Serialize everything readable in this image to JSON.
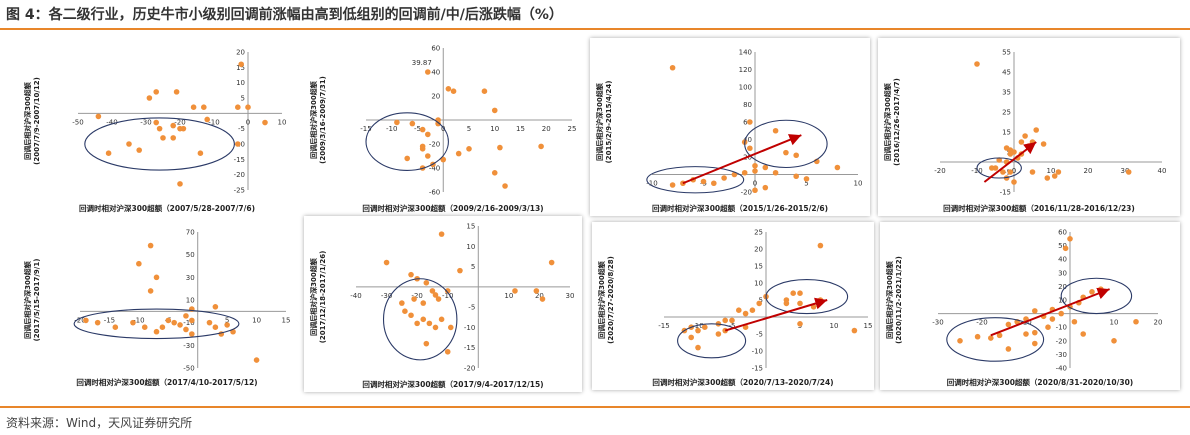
{
  "title": "图 4：各二级行业，历史牛市小级别回调前涨幅由高到低组别的回调前/中/后涨跌幅（%）",
  "source": "资料来源：Wind，天风证券研究所",
  "colors": {
    "accent": "#e8862a",
    "dot": "#f0903a",
    "ellipse": "#2b3a67",
    "arrow": "#c00000"
  },
  "chart_data": [
    {
      "type": "scatter",
      "xlabel": "回调时相对沪深300超额（2007/5/28-2007/7/6)",
      "ylabel": "回调后相对沪深300超额 (2007/7/9-2007/10/12)",
      "xlim": [
        -50,
        10
      ],
      "ylim": [
        -25,
        20
      ],
      "xticks": [
        -50,
        -40,
        -30,
        -20,
        -10,
        0,
        10
      ],
      "yticks": [
        -25,
        -20,
        -15,
        -10,
        -5,
        5,
        10,
        15,
        20
      ],
      "points": [
        [
          -2,
          16
        ],
        [
          0,
          2
        ],
        [
          -3,
          2
        ],
        [
          -13,
          2
        ],
        [
          -16,
          2
        ],
        [
          -44,
          -1
        ],
        [
          -29,
          5
        ],
        [
          -27,
          7
        ],
        [
          -21,
          7
        ],
        [
          -12,
          -2
        ],
        [
          -27,
          -3
        ],
        [
          -22,
          -4
        ],
        [
          -19,
          -5
        ],
        [
          -26,
          -5
        ],
        [
          -25,
          -8
        ],
        [
          -22,
          -8
        ],
        [
          -20,
          -5
        ],
        [
          -35,
          -10
        ],
        [
          -32,
          -12
        ],
        [
          -41,
          -13
        ],
        [
          -14,
          -13
        ],
        [
          -3,
          -10
        ],
        [
          -20,
          -23
        ],
        [
          5,
          -3
        ]
      ]
    },
    {
      "type": "scatter",
      "xlabel": "回调时相对沪深300超额（2009/2/16-2009/3/13)",
      "ylabel": "回调后相对沪深300超额 (2009/3/16-2009/7/31)",
      "xlim": [
        -15,
        25
      ],
      "ylim": [
        -60,
        60
      ],
      "xticks": [
        -15,
        -10,
        -5,
        0,
        5,
        10,
        15,
        20,
        25
      ],
      "yticks": [
        -60,
        -40,
        -20,
        20,
        40,
        60
      ],
      "annotation": {
        "text": "39.87",
        "x": -3,
        "y": 39.87
      },
      "points": [
        [
          -3,
          40
        ],
        [
          1,
          26
        ],
        [
          2,
          24
        ],
        [
          8,
          24
        ],
        [
          10,
          8
        ],
        [
          -1,
          0
        ],
        [
          -1,
          -3
        ],
        [
          -9,
          -2
        ],
        [
          -6,
          -3
        ],
        [
          -4,
          -8
        ],
        [
          -3,
          -12
        ],
        [
          -4,
          -22
        ],
        [
          -4,
          -24
        ],
        [
          -3,
          -30
        ],
        [
          -7,
          -32
        ],
        [
          -2,
          -37
        ],
        [
          -4,
          -40
        ],
        [
          3,
          -28
        ],
        [
          5,
          -24
        ],
        [
          11,
          -23
        ],
        [
          10,
          -44
        ],
        [
          12,
          -55
        ],
        [
          19,
          -22
        ],
        [
          0,
          -33
        ]
      ]
    },
    {
      "type": "scatter",
      "xlabel": "回调时相对沪深300超额（2015/1/26-2015/2/6)",
      "ylabel": "回调后相对沪深300超额 (2015/2/9-2015/4/24)",
      "xlim": [
        -10,
        10
      ],
      "ylim": [
        -20,
        140
      ],
      "xticks": [
        -10,
        -5,
        0,
        5,
        10
      ],
      "yticks": [
        -20,
        20,
        40,
        60,
        80,
        100,
        120,
        140
      ],
      "points": [
        [
          -8,
          122
        ],
        [
          -0.5,
          60
        ],
        [
          -1,
          37
        ],
        [
          -0.5,
          30
        ],
        [
          2,
          50
        ],
        [
          3,
          25
        ],
        [
          4,
          22
        ],
        [
          6,
          15
        ],
        [
          8,
          8
        ],
        [
          0,
          10
        ],
        [
          1,
          8
        ],
        [
          0,
          4
        ],
        [
          -1,
          2
        ],
        [
          -2,
          0
        ],
        [
          -3,
          -4
        ],
        [
          -6,
          -6
        ],
        [
          -5,
          -8
        ],
        [
          -4,
          -10
        ],
        [
          -8,
          -12
        ],
        [
          -7,
          -10
        ],
        [
          1,
          -15
        ],
        [
          0,
          -18
        ],
        [
          2,
          2
        ],
        [
          4,
          -2
        ],
        [
          5,
          -5
        ]
      ]
    },
    {
      "type": "scatter",
      "xlabel": "回调时相对沪深300超额（2016/11/28-2016/12/23)",
      "ylabel": "回调后相对沪深300超额 (2016/12/26-2017/4/7)",
      "xlim": [
        -20,
        40
      ],
      "ylim": [
        -15,
        55
      ],
      "xticks": [
        -20,
        -10,
        0,
        10,
        20,
        30,
        40
      ],
      "yticks": [
        -15,
        -5,
        5,
        15,
        25,
        35,
        45,
        55
      ],
      "points": [
        [
          -10,
          49
        ],
        [
          6,
          16
        ],
        [
          3,
          13
        ],
        [
          5,
          10
        ],
        [
          2,
          10
        ],
        [
          8,
          9
        ],
        [
          4,
          8
        ],
        [
          -2,
          7
        ],
        [
          -1,
          6
        ],
        [
          0,
          5
        ],
        [
          -1,
          4
        ],
        [
          2,
          4
        ],
        [
          1,
          2
        ],
        [
          -4,
          1
        ],
        [
          -2,
          0
        ],
        [
          -5,
          -3
        ],
        [
          -6,
          -3
        ],
        [
          -3,
          -5
        ],
        [
          -2,
          -8
        ],
        [
          0,
          -10
        ],
        [
          -1,
          -5
        ],
        [
          9,
          -8
        ],
        [
          11,
          -7
        ],
        [
          12,
          -5
        ],
        [
          31,
          -5
        ],
        [
          5,
          -5
        ]
      ]
    },
    {
      "type": "scatter",
      "xlabel": "回调时相对沪深300超额（2017/4/10-2017/5/12)",
      "ylabel": "回调后相对沪深300超额 (2017/5/15-2017/9/1)",
      "xlim": [
        -20,
        15
      ],
      "ylim": [
        -50,
        70
      ],
      "xticks": [
        -20,
        -15,
        -10,
        -5,
        5,
        10,
        15
      ],
      "yticks": [
        -50,
        -30,
        -10,
        10,
        30,
        50,
        70
      ],
      "points": [
        [
          -8,
          58
        ],
        [
          -10,
          42
        ],
        [
          -7,
          30
        ],
        [
          -8,
          18
        ],
        [
          -1,
          2
        ],
        [
          -2,
          -4
        ],
        [
          -1,
          -8
        ],
        [
          -4,
          -10
        ],
        [
          -5,
          -8
        ],
        [
          -6,
          -14
        ],
        [
          -7,
          -18
        ],
        [
          -9,
          -14
        ],
        [
          -11,
          -10
        ],
        [
          -17,
          -10
        ],
        [
          -19,
          -8
        ],
        [
          -14,
          -14
        ],
        [
          -3,
          -12
        ],
        [
          2,
          -10
        ],
        [
          3,
          -14
        ],
        [
          5,
          -12
        ],
        [
          6,
          -18
        ],
        [
          4,
          -20
        ],
        [
          3,
          4
        ],
        [
          -1,
          -20
        ],
        [
          10,
          -43
        ],
        [
          -2,
          -16
        ]
      ]
    },
    {
      "type": "scatter",
      "xlabel": "回调时相对沪深300超额（2017/9/4-2017/12/15)",
      "ylabel": "回调后相对沪深300超额 (2017/12/18-2017/1/26)",
      "xlim": [
        -40,
        30
      ],
      "ylim": [
        -20,
        15
      ],
      "xticks": [
        -40,
        -30,
        -20,
        -10,
        10,
        20,
        30
      ],
      "yticks": [
        -20,
        -15,
        -10,
        -5,
        5,
        10,
        15
      ],
      "points": [
        [
          -12,
          13
        ],
        [
          -30,
          6
        ],
        [
          -20,
          2
        ],
        [
          -22,
          3
        ],
        [
          -17,
          1
        ],
        [
          -15,
          -1
        ],
        [
          -14,
          -2
        ],
        [
          -10,
          -1
        ],
        [
          -13,
          -3
        ],
        [
          -21,
          -3
        ],
        [
          -18,
          -4
        ],
        [
          -25,
          -4
        ],
        [
          -24,
          -6
        ],
        [
          -22,
          -7
        ],
        [
          -18,
          -8
        ],
        [
          -12,
          -8
        ],
        [
          -20,
          -9
        ],
        [
          -16,
          -9
        ],
        [
          -14,
          -10
        ],
        [
          -17,
          -14
        ],
        [
          -10,
          -16
        ],
        [
          -9,
          -10
        ],
        [
          12,
          -1
        ],
        [
          19,
          -1
        ],
        [
          21,
          -3
        ],
        [
          24,
          6
        ],
        [
          -6,
          4
        ]
      ]
    },
    {
      "type": "scatter",
      "xlabel": "回调时相对沪深300超额（2020/7/13-2020/7/24)",
      "ylabel": "回调后相对沪深300超额 (2020/7/27-2020/8/28)",
      "xlim": [
        -15,
        15
      ],
      "ylim": [
        -15,
        25
      ],
      "xticks": [
        -15,
        -10,
        -5,
        5,
        10,
        15
      ],
      "yticks": [
        -15,
        -10,
        -5,
        5,
        10,
        15,
        20,
        25
      ],
      "points": [
        [
          8,
          21
        ],
        [
          4,
          7
        ],
        [
          5,
          7
        ],
        [
          3,
          5
        ],
        [
          0,
          6
        ],
        [
          -1,
          4
        ],
        [
          3,
          4
        ],
        [
          5,
          4
        ],
        [
          7,
          3
        ],
        [
          8,
          5
        ],
        [
          -2,
          2
        ],
        [
          -3,
          1
        ],
        [
          -4,
          2
        ],
        [
          -5,
          -1
        ],
        [
          -6,
          -1
        ],
        [
          -7,
          -2
        ],
        [
          -6,
          -4
        ],
        [
          -7,
          -5
        ],
        [
          -9,
          -3
        ],
        [
          -11,
          -3
        ],
        [
          -12,
          -4
        ],
        [
          -10,
          -4
        ],
        [
          -11,
          -6
        ],
        [
          -10,
          -9
        ],
        [
          5,
          -2
        ],
        [
          13,
          -4
        ],
        [
          -3,
          -3
        ]
      ]
    },
    {
      "type": "scatter",
      "xlabel": "回调时相对沪深300超额（2020/8/31-2020/10/30)",
      "ylabel": "回调后相对沪深300超额 (2020/11/2-2021/1/22)",
      "xlim": [
        -30,
        20
      ],
      "ylim": [
        -40,
        60
      ],
      "xticks": [
        -30,
        -20,
        -10,
        10,
        20
      ],
      "yticks": [
        -40,
        -30,
        -20,
        -10,
        10,
        20,
        30,
        40,
        50,
        60
      ],
      "points": [
        [
          -1,
          48
        ],
        [
          0,
          55
        ],
        [
          7,
          18
        ],
        [
          5,
          16
        ],
        [
          3,
          12
        ],
        [
          2,
          8
        ],
        [
          0,
          5
        ],
        [
          -4,
          3
        ],
        [
          -8,
          2
        ],
        [
          -2,
          0
        ],
        [
          -6,
          -2
        ],
        [
          -4,
          -4
        ],
        [
          -10,
          -4
        ],
        [
          -12,
          -6
        ],
        [
          -14,
          -8
        ],
        [
          -5,
          -10
        ],
        [
          -8,
          -14
        ],
        [
          -10,
          -15
        ],
        [
          -16,
          -16
        ],
        [
          -18,
          -18
        ],
        [
          -21,
          -17
        ],
        [
          -25,
          -20
        ],
        [
          -14,
          -26
        ],
        [
          -8,
          -22
        ],
        [
          1,
          -6
        ],
        [
          10,
          -20
        ],
        [
          15,
          -6
        ],
        [
          3,
          -15
        ]
      ]
    }
  ]
}
